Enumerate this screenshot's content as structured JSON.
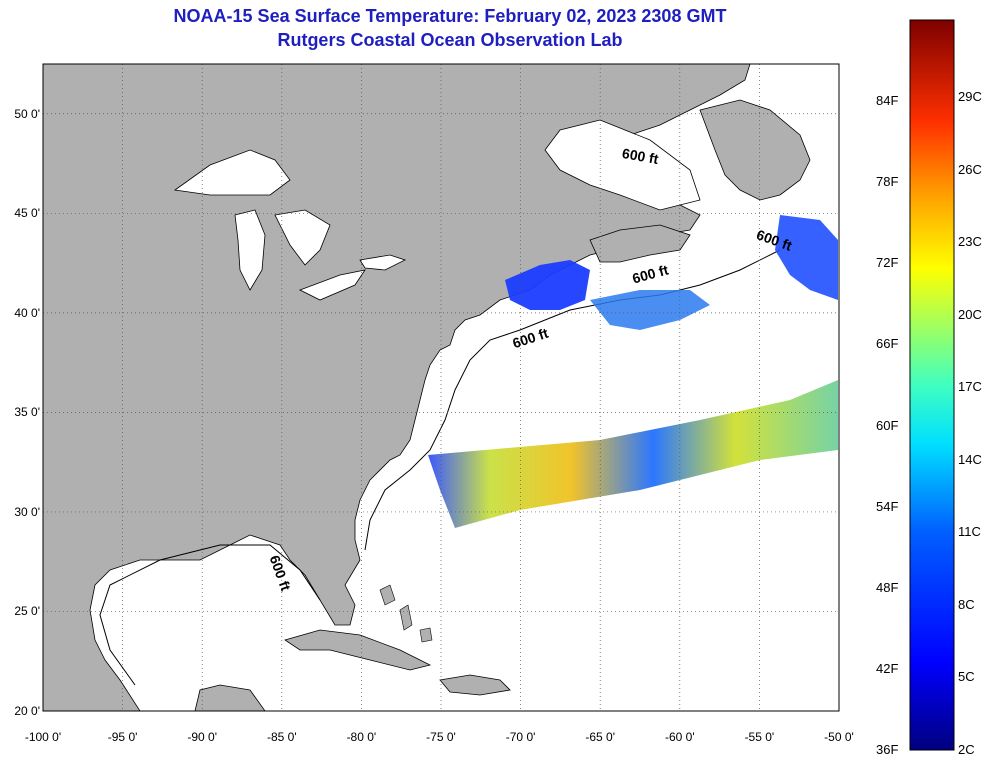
{
  "title_line1": "NOAA-15 Sea Surface Temperature:  February 02, 2023 2308 GMT",
  "title_line2": "Rutgers Coastal Ocean Observation Lab",
  "map": {
    "lon_range": [
      -100,
      -50
    ],
    "lat_range": [
      20,
      52.5
    ],
    "lat_ticks": [
      "20 0'",
      "25 0'",
      "30 0'",
      "35 0'",
      "40 0'",
      "45 0'",
      "50 0'"
    ],
    "lon_ticks": [
      "-100 0'",
      "-95 0'",
      "-90 0'",
      "-85 0'",
      "-80 0'",
      "-75 0'",
      "-70 0'",
      "-65 0'",
      "-60 0'",
      "-55 0'",
      "-50 0'"
    ],
    "contour_labels": [
      "600 ft",
      "600 ft",
      "600 ft",
      "600 ft",
      "600 ft"
    ],
    "land_color": "#b0b0b0",
    "ocean_color": "#ffffff",
    "grid_style": "dotted"
  },
  "colorbar": {
    "f_labels": [
      "36F",
      "42F",
      "48F",
      "54F",
      "60F",
      "66F",
      "72F",
      "78F",
      "84F"
    ],
    "c_labels": [
      "2C",
      "5C",
      "8C",
      "11C",
      "14C",
      "17C",
      "20C",
      "23C",
      "26C",
      "29C"
    ],
    "colors": [
      "#000080",
      "#0000ff",
      "#0080ff",
      "#00ffff",
      "#80ff80",
      "#ffff00",
      "#ff8000",
      "#ff0000",
      "#800000"
    ]
  }
}
